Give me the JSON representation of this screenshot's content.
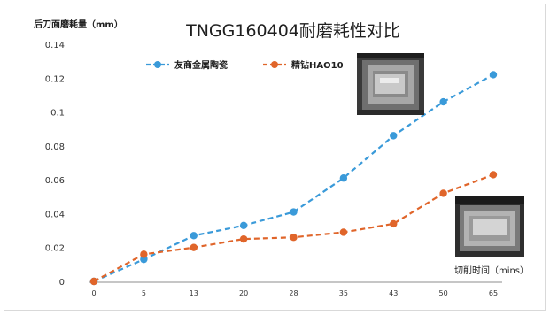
{
  "chart_data": {
    "type": "line",
    "title": "TNGG160404耐磨耗性对比",
    "ylabel": "后刀面磨耗量（mm）",
    "xlabel": "切削时间（mins）",
    "categories": [
      "0",
      "5",
      "13",
      "20",
      "28",
      "35",
      "43",
      "50",
      "65"
    ],
    "y_ticks": [
      "0",
      "0.02",
      "0.04",
      "0.06",
      "0.08",
      "0.1",
      "0.12",
      "0.14"
    ],
    "ylim": [
      0,
      0.14
    ],
    "grid": false,
    "legend_position": "top-left",
    "series": [
      {
        "name": "友商金属陶瓷",
        "color": "#3a9ad9",
        "values": [
          0,
          0.013,
          0.027,
          0.033,
          0.041,
          0.061,
          0.086,
          0.106,
          0.122
        ]
      },
      {
        "name": "精钻HAO10",
        "color": "#e0652a",
        "values": [
          0,
          0.016,
          0.02,
          0.025,
          0.026,
          0.029,
          0.034,
          0.052,
          0.063
        ]
      }
    ]
  }
}
